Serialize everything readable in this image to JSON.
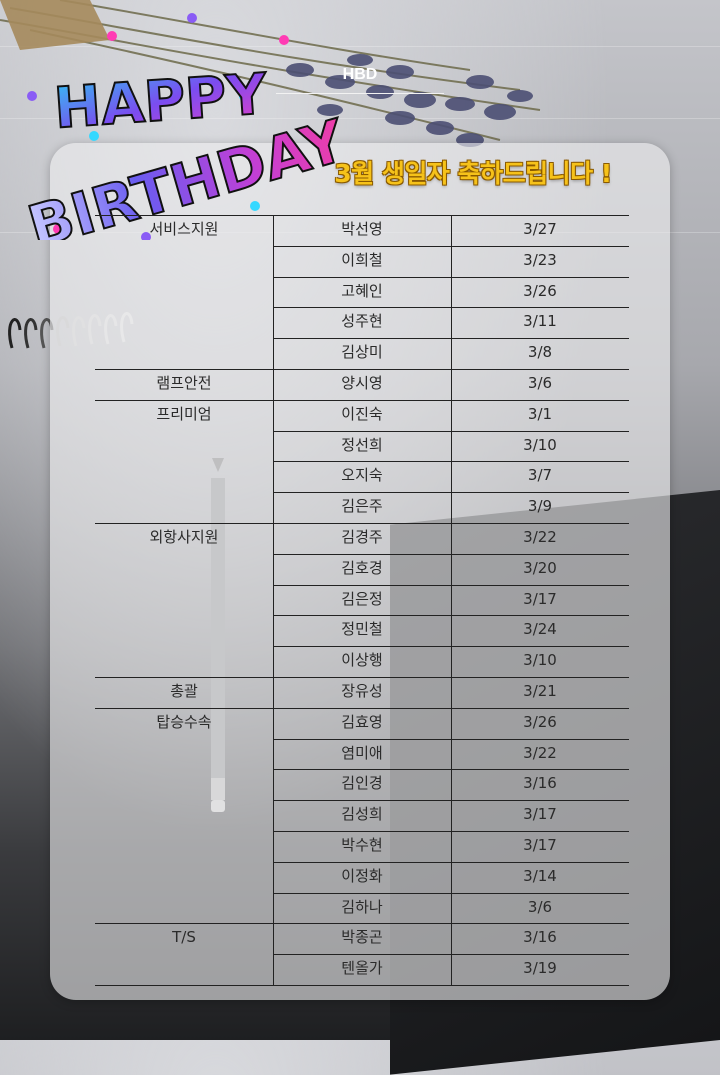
{
  "header": {
    "title": "HBD",
    "headline": "3월 생일자 축하드립니다 !",
    "logo_line1": "HAPPY",
    "logo_line2": "BIRTHDAY"
  },
  "colors": {
    "headline": "#f6c21a",
    "title": "#ffffff",
    "card": "#ececee"
  },
  "groups": [
    {
      "dept": "서비스지원",
      "people": [
        {
          "name": "박선영",
          "date": "3/27"
        },
        {
          "name": "이희철",
          "date": "3/23"
        },
        {
          "name": "고혜인",
          "date": "3/26"
        },
        {
          "name": "성주현",
          "date": "3/11"
        },
        {
          "name": "김상미",
          "date": "3/8"
        }
      ]
    },
    {
      "dept": "램프안전",
      "people": [
        {
          "name": "양시영",
          "date": "3/6"
        }
      ]
    },
    {
      "dept": "프리미엄",
      "people": [
        {
          "name": "이진숙",
          "date": "3/1"
        },
        {
          "name": "정선희",
          "date": "3/10"
        },
        {
          "name": "오지숙",
          "date": "3/7"
        },
        {
          "name": "김은주",
          "date": "3/9"
        }
      ]
    },
    {
      "dept": "외항사지원",
      "people": [
        {
          "name": "김경주",
          "date": "3/22"
        },
        {
          "name": "김호경",
          "date": "3/20"
        },
        {
          "name": "김은정",
          "date": "3/17"
        },
        {
          "name": "정민철",
          "date": "3/24"
        },
        {
          "name": "이상행",
          "date": "3/10"
        }
      ]
    },
    {
      "dept": "총괄",
      "people": [
        {
          "name": "장유성",
          "date": "3/21"
        }
      ]
    },
    {
      "dept": "탑승수속",
      "people": [
        {
          "name": "김효영",
          "date": "3/26"
        },
        {
          "name": "염미애",
          "date": "3/22"
        },
        {
          "name": "김인경",
          "date": "3/16"
        },
        {
          "name": "김성희",
          "date": "3/17"
        },
        {
          "name": "박수현",
          "date": "3/17"
        },
        {
          "name": "이정화",
          "date": "3/14"
        },
        {
          "name": "김하나",
          "date": "3/6"
        }
      ]
    },
    {
      "dept": "T/S",
      "people": [
        {
          "name": "박종곤",
          "date": "3/16"
        },
        {
          "name": "텐올가",
          "date": "3/19"
        }
      ]
    }
  ]
}
